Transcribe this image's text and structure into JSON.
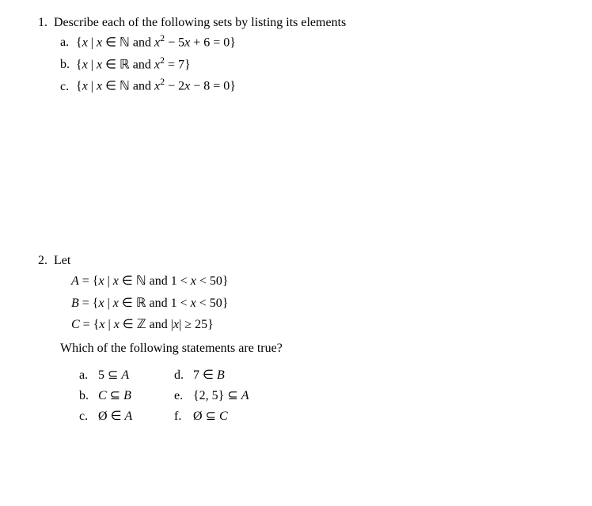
{
  "problem1": {
    "number": "1.",
    "text": "Describe each of the following sets by listing its elements",
    "items": {
      "a": {
        "label": "a.",
        "pre": "{",
        "var": "x",
        "mid": " | ",
        "var2": "x",
        "in": " ∈ ",
        "set": "ℕ",
        "and": " and ",
        "expr_var": "x",
        "expr_sup": "2",
        "expr_rest": " − 5",
        "expr_var2": "x",
        "expr_end": " + 6 = 0}"
      },
      "b": {
        "label": "b.",
        "pre": "{",
        "var": "x",
        "mid": " | ",
        "var2": "x",
        "in": " ∈ ",
        "set": "ℝ",
        "and": " and ",
        "expr_var": "x",
        "expr_sup": "2",
        "expr_end": " = 7}"
      },
      "c": {
        "label": "c.",
        "pre": "{",
        "var": "x",
        "mid": " | ",
        "var2": "x",
        "in": " ∈ ",
        "set": "ℕ",
        "and": " and ",
        "expr_var": "x",
        "expr_sup": "2",
        "expr_rest": " − 2",
        "expr_var2": "x",
        "expr_end": " − 8 = 0}"
      }
    }
  },
  "problem2": {
    "number": "2.",
    "text": "Let",
    "sets": {
      "A": {
        "name": "A",
        "eq": " = {",
        "var": "x",
        "mid": " | ",
        "var2": "x",
        "in": " ∈ ",
        "set": "ℕ",
        "and": " and 1 < ",
        "var3": "x",
        "cond": " < 50}"
      },
      "B": {
        "name": "B",
        "eq": " = {",
        "var": "x",
        "mid": " | ",
        "var2": "x",
        "in": " ∈ ",
        "set": "ℝ",
        "and": " and 1 < ",
        "var3": "x",
        "cond": " < 50}"
      },
      "C": {
        "name": "C",
        "eq": " = {",
        "var": "x",
        "mid": " | ",
        "var2": "x",
        "in": " ∈ ",
        "set": "ℤ",
        "and": " and |",
        "var3": "x",
        "cond": "| ≥ 25}"
      }
    },
    "question": "Which of the following statements are true?",
    "answers": {
      "a": {
        "label": "a.",
        "text": "5 ⊆ ",
        "var": "A"
      },
      "b": {
        "label": "b.",
        "var1": "C",
        "text": " ⊆ ",
        "var2": "B"
      },
      "c": {
        "label": "c.",
        "sym": "Ø",
        "text": " ∈ ",
        "var": "A"
      },
      "d": {
        "label": "d.",
        "text": "7 ∈ ",
        "var": "B"
      },
      "e": {
        "label": "e.",
        "text": "{2, 5} ⊆ ",
        "var": "A"
      },
      "f": {
        "label": "f.",
        "sym": "Ø",
        "text": " ⊆ ",
        "var": "C"
      }
    }
  }
}
